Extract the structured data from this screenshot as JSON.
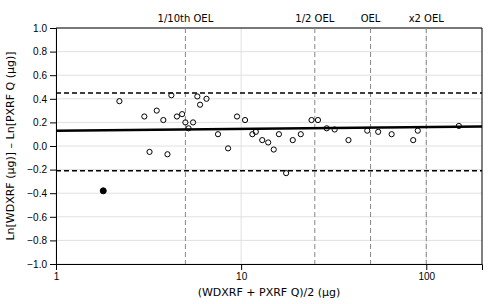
{
  "chart_data": {
    "type": "scatter",
    "xlabel": "(WDXRF + PXRF Q)/2 (µg)",
    "ylabel": "Ln[WDXRF (µg)] – Ln[PXRF Q (µg)]",
    "log": "x",
    "grid": true,
    "xlim": [
      1.0,
      200.0
    ],
    "ylim": [
      -1.0,
      1.0
    ],
    "xticks": [
      1,
      10,
      100
    ],
    "yticks": [
      {
        "value": -1.0,
        "label": "−1.0"
      },
      {
        "value": -0.8,
        "label": "−0.8"
      },
      {
        "value": -0.6,
        "label": "−0.6"
      },
      {
        "value": -0.4,
        "label": "−0.4"
      },
      {
        "value": -0.2,
        "label": "−0.2"
      },
      {
        "value": 0.0,
        "label": "0.0"
      },
      0.2,
      0.4,
      0.6,
      0.8,
      {
        "value": 1.0,
        "label": "1.0"
      }
    ],
    "series": [
      {
        "type": "scatter",
        "marker": "open",
        "color": "#000000",
        "x": [
          2.2,
          3.0,
          3.5,
          3.8,
          4.2,
          4.5,
          4.8,
          5.0,
          5.5,
          5.8,
          6.0,
          3.2,
          4.0,
          5.2,
          6.5,
          7.5,
          8.5,
          9.5,
          10.5,
          11.5,
          12.0,
          13.0,
          14.0,
          15.0,
          16.0,
          17.5,
          19.0,
          21.0,
          24.0,
          26.0,
          29.0,
          32.0,
          38.0,
          48.0,
          55.0,
          65.0,
          85.0,
          90.0,
          150.0
        ],
        "values": [
          0.38,
          0.25,
          0.3,
          0.22,
          0.43,
          0.25,
          0.27,
          0.2,
          0.2,
          0.42,
          0.35,
          -0.05,
          -0.07,
          0.15,
          0.4,
          0.1,
          -0.02,
          0.25,
          0.22,
          0.1,
          0.12,
          0.05,
          0.03,
          -0.03,
          0.1,
          -0.23,
          0.05,
          0.1,
          0.22,
          0.22,
          0.15,
          0.14,
          0.05,
          0.13,
          0.12,
          0.1,
          0.05,
          0.13,
          0.17
        ]
      },
      {
        "type": "scatter",
        "marker": "filled",
        "color": "#000000",
        "x": [
          1.8
        ],
        "values": [
          -0.38
        ]
      },
      {
        "type": "line",
        "line_style": "solid",
        "color": "#000000",
        "x": [
          1.0,
          199.98618696328
        ],
        "values": [
          0.13,
          0.165
        ]
      }
    ],
    "horizontal_lines": [
      {
        "y": 0.45,
        "color": "#000000",
        "line_style": "dashed"
      },
      {
        "y": -0.21,
        "color": "#000000",
        "line_style": "dashed"
      }
    ],
    "vertical_lines": [
      {
        "x": 5.0,
        "text": "1/10th OEL",
        "color": "#888888",
        "line_style": "dashed"
      },
      {
        "x": 25.0,
        "text": "1/2 OEL",
        "color": "#888888",
        "line_style": "dashed"
      },
      {
        "x": 50.0,
        "text": "OEL",
        "color": "#888888",
        "line_style": "dashed"
      },
      {
        "x": 100.0,
        "text": "x2 OEL",
        "color": "#888888",
        "line_style": "dashed"
      }
    ]
  }
}
